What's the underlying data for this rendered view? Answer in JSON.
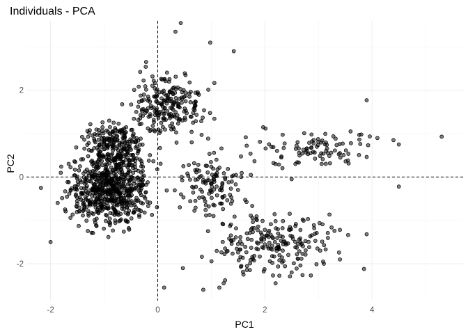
{
  "chart_data": {
    "type": "scatter",
    "title": "Individuals - PCA",
    "xlabel": "PC1",
    "ylabel": "PC2",
    "xlim": [
      -2.45,
      5.7
    ],
    "ylim": [
      -2.85,
      3.6
    ],
    "xticks": [
      -2,
      0,
      2,
      4
    ],
    "yticks": [
      -2,
      0,
      2
    ],
    "xtick_labels": [
      "-2",
      "0",
      "2",
      "4"
    ],
    "ytick_labels": [
      "-2",
      "0",
      "2"
    ],
    "grid": true,
    "reference_lines": {
      "x": 0,
      "y": 0
    },
    "point_color": "#000000",
    "point_alpha": 0.5,
    "approx_point_count": 1500,
    "point_clusters": [
      {
        "x_range": [
          -2.0,
          0.2
        ],
        "y_range": [
          -1.5,
          1.0
        ],
        "n": 650
      },
      {
        "x_range": [
          -1.6,
          0.0
        ],
        "y_range": [
          0.0,
          1.5
        ],
        "n": 200
      },
      {
        "x_range": [
          -0.9,
          1.3
        ],
        "y_range": [
          0.5,
          2.8
        ],
        "n": 230
      },
      {
        "x_range": [
          0.0,
          2.0
        ],
        "y_range": [
          -1.2,
          0.8
        ],
        "n": 120
      },
      {
        "x_range": [
          0.4,
          3.9
        ],
        "y_range": [
          -2.6,
          -0.4
        ],
        "n": 210
      },
      {
        "x_range": [
          1.2,
          4.6
        ],
        "y_range": [
          0.0,
          1.3
        ],
        "n": 90
      }
    ],
    "points": [
      [
        5.3,
        0.93
      ],
      [
        3.9,
        1.77
      ],
      [
        4.5,
        0.75
      ],
      [
        4.4,
        0.85
      ],
      [
        3.9,
        -1.32
      ],
      [
        4.5,
        -0.22
      ],
      [
        3.8,
        0.98
      ],
      [
        0.43,
        3.55
      ],
      [
        0.33,
        3.35
      ],
      [
        0.98,
        3.1
      ],
      [
        1.42,
        2.9
      ],
      [
        -2.18,
        -0.25
      ],
      [
        -2.0,
        -1.5
      ],
      [
        0.85,
        -2.6
      ],
      [
        0.12,
        -2.55
      ],
      [
        1.15,
        -2.55
      ],
      [
        1.23,
        -2.45
      ],
      [
        3.85,
        -2.12
      ],
      [
        2.87,
        0.98
      ],
      [
        0.47,
        -2.1
      ],
      [
        1.6,
        -2.25
      ],
      [
        2.2,
        -2.45
      ],
      [
        2.5,
        -2.2
      ],
      [
        3.1,
        -2.0
      ],
      [
        3.4,
        -1.9
      ],
      [
        4.1,
        0.9
      ],
      [
        3.6,
        1.05
      ],
      [
        3.4,
        0.55
      ],
      [
        2.5,
        -0.05
      ],
      [
        2.2,
        0.3
      ]
    ]
  }
}
